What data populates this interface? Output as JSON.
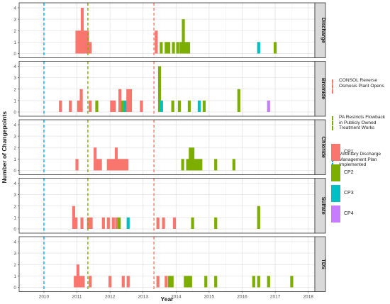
{
  "chart_data": {
    "type": "bar",
    "xlabel": "Year",
    "ylabel": "Number of Changepoints",
    "xlim": [
      2009.25,
      2018.2
    ],
    "ylim": [
      0,
      4
    ],
    "x_ticks": [
      2010,
      2011,
      2012,
      2013,
      2014,
      2015,
      2016,
      2017,
      2018
    ],
    "y_ticks": [
      0,
      1,
      2,
      3,
      4
    ],
    "grid": true,
    "legend_position": "right",
    "series_colors": {
      "CP1": "#F8766D",
      "CP2": "#7CAE00",
      "CP3": "#00BFC4",
      "CP4": "#C77CFF"
    },
    "fill_legend": [
      {
        "label": "CP1",
        "color": "#F8766D"
      },
      {
        "label": "CP2",
        "color": "#7CAE00"
      },
      {
        "label": "CP3",
        "color": "#00BFC4"
      },
      {
        "label": "CP4",
        "color": "#C77CFF"
      }
    ],
    "events": [
      {
        "label": "CONSOL Reverse Osmosis Plant Opens",
        "x": 2013.33,
        "color": "#F8766D",
        "lines": [
          "CONSOL Reverse",
          "Osmosis Plant Opens"
        ]
      },
      {
        "label": "PA Restricts Flowback in Publicly Owned Treatment Works",
        "x": 2011.33,
        "color": "#7CAE00",
        "lines": [
          "PA Restricts Flowback",
          "in Publicly Owned",
          "Treatment Works"
        ]
      },
      {
        "label": "Voluntary Discharge Management Plan Implemented",
        "x": 2010.0,
        "color": "#00A9FF",
        "lines": [
          "Voluntary Discharge",
          "Management Plan",
          "Implemented"
        ]
      }
    ],
    "panels": [
      {
        "name": "Discharge",
        "bars": [
          {
            "x": 2011.0,
            "y": 2,
            "s": "CP1"
          },
          {
            "x": 2011.08,
            "y": 2,
            "s": "CP1"
          },
          {
            "x": 2011.16,
            "y": 4,
            "s": "CP1"
          },
          {
            "x": 2011.24,
            "y": 2,
            "s": "CP1"
          },
          {
            "x": 2011.32,
            "y": 2,
            "s": "CP1"
          },
          {
            "x": 2011.4,
            "y": 1,
            "s": "CP1"
          },
          {
            "x": 2013.4,
            "y": 2,
            "s": "CP1"
          },
          {
            "x": 2013.55,
            "y": 1,
            "s": "CP2"
          },
          {
            "x": 2013.7,
            "y": 1,
            "s": "CP2"
          },
          {
            "x": 2013.78,
            "y": 1,
            "s": "CP2"
          },
          {
            "x": 2013.92,
            "y": 1,
            "s": "CP2"
          },
          {
            "x": 2014.05,
            "y": 1,
            "s": "CP2"
          },
          {
            "x": 2014.15,
            "y": 1,
            "s": "CP2"
          },
          {
            "x": 2014.22,
            "y": 3,
            "s": "CP2"
          },
          {
            "x": 2014.3,
            "y": 1,
            "s": "CP2"
          },
          {
            "x": 2014.38,
            "y": 1,
            "s": "CP2"
          },
          {
            "x": 2016.5,
            "y": 1,
            "s": "CP3"
          },
          {
            "x": 2017.0,
            "y": 1,
            "s": "CP2"
          }
        ]
      },
      {
        "name": "Bromide",
        "bars": [
          {
            "x": 2010.5,
            "y": 1,
            "s": "CP1"
          },
          {
            "x": 2010.8,
            "y": 1,
            "s": "CP1"
          },
          {
            "x": 2011.05,
            "y": 1,
            "s": "CP1"
          },
          {
            "x": 2011.13,
            "y": 2,
            "s": "CP1"
          },
          {
            "x": 2011.4,
            "y": 1,
            "s": "CP1"
          },
          {
            "x": 2011.6,
            "y": 1,
            "s": "CP2"
          },
          {
            "x": 2012.05,
            "y": 1,
            "s": "CP1"
          },
          {
            "x": 2012.13,
            "y": 1,
            "s": "CP1"
          },
          {
            "x": 2012.3,
            "y": 2,
            "s": "CP1"
          },
          {
            "x": 2012.38,
            "y": 1,
            "s": "CP2"
          },
          {
            "x": 2012.46,
            "y": 1,
            "s": "CP3"
          },
          {
            "x": 2012.54,
            "y": 2,
            "s": "CP1"
          },
          {
            "x": 2012.62,
            "y": 2,
            "s": "CP1"
          },
          {
            "x": 2012.95,
            "y": 1,
            "s": "CP1"
          },
          {
            "x": 2013.5,
            "y": 4,
            "s": "CP2"
          },
          {
            "x": 2013.56,
            "y": 1,
            "s": "CP3"
          },
          {
            "x": 2013.9,
            "y": 1,
            "s": "CP2"
          },
          {
            "x": 2014.1,
            "y": 1,
            "s": "CP2"
          },
          {
            "x": 2014.4,
            "y": 1,
            "s": "CP2"
          },
          {
            "x": 2014.7,
            "y": 1,
            "s": "CP3"
          },
          {
            "x": 2014.85,
            "y": 1,
            "s": "CP2"
          },
          {
            "x": 2015.9,
            "y": 2,
            "s": "CP2"
          },
          {
            "x": 2016.8,
            "y": 1,
            "s": "CP4"
          }
        ]
      },
      {
        "name": "Chloride",
        "bars": [
          {
            "x": 2011.0,
            "y": 1,
            "s": "CP1"
          },
          {
            "x": 2011.55,
            "y": 2,
            "s": "CP1"
          },
          {
            "x": 2011.63,
            "y": 1,
            "s": "CP1"
          },
          {
            "x": 2011.71,
            "y": 1,
            "s": "CP1"
          },
          {
            "x": 2011.95,
            "y": 1,
            "s": "CP1"
          },
          {
            "x": 2012.03,
            "y": 1,
            "s": "CP1"
          },
          {
            "x": 2012.11,
            "y": 1,
            "s": "CP1"
          },
          {
            "x": 2012.19,
            "y": 2,
            "s": "CP1"
          },
          {
            "x": 2012.27,
            "y": 1,
            "s": "CP1"
          },
          {
            "x": 2012.35,
            "y": 1,
            "s": "CP1"
          },
          {
            "x": 2012.43,
            "y": 1,
            "s": "CP1"
          },
          {
            "x": 2012.51,
            "y": 1,
            "s": "CP1"
          },
          {
            "x": 2014.2,
            "y": 1,
            "s": "CP2"
          },
          {
            "x": 2014.35,
            "y": 1,
            "s": "CP2"
          },
          {
            "x": 2014.43,
            "y": 2,
            "s": "CP2"
          },
          {
            "x": 2014.51,
            "y": 2,
            "s": "CP2"
          },
          {
            "x": 2014.59,
            "y": 1,
            "s": "CP2"
          },
          {
            "x": 2014.67,
            "y": 1,
            "s": "CP2"
          },
          {
            "x": 2014.75,
            "y": 1,
            "s": "CP2"
          },
          {
            "x": 2015.2,
            "y": 1,
            "s": "CP2"
          },
          {
            "x": 2015.75,
            "y": 1,
            "s": "CP2"
          }
        ]
      },
      {
        "name": "Sulfate",
        "bars": [
          {
            "x": 2010.9,
            "y": 2,
            "s": "CP1"
          },
          {
            "x": 2010.97,
            "y": 1,
            "s": "CP1"
          },
          {
            "x": 2011.15,
            "y": 1,
            "s": "CP1"
          },
          {
            "x": 2011.35,
            "y": 1,
            "s": "CP1"
          },
          {
            "x": 2011.43,
            "y": 1,
            "s": "CP1"
          },
          {
            "x": 2011.8,
            "y": 1,
            "s": "CP1"
          },
          {
            "x": 2011.95,
            "y": 1,
            "s": "CP1"
          },
          {
            "x": 2012.1,
            "y": 1,
            "s": "CP1"
          },
          {
            "x": 2012.2,
            "y": 1,
            "s": "CP1"
          },
          {
            "x": 2012.28,
            "y": 1,
            "s": "CP2"
          },
          {
            "x": 2012.55,
            "y": 1,
            "s": "CP3"
          },
          {
            "x": 2013.45,
            "y": 1,
            "s": "CP1"
          },
          {
            "x": 2013.62,
            "y": 1,
            "s": "CP1"
          },
          {
            "x": 2013.95,
            "y": 1,
            "s": "CP1"
          },
          {
            "x": 2014.5,
            "y": 1,
            "s": "CP2"
          },
          {
            "x": 2015.2,
            "y": 1,
            "s": "CP2"
          },
          {
            "x": 2016.5,
            "y": 2,
            "s": "CP2"
          }
        ]
      },
      {
        "name": "TDS",
        "bars": [
          {
            "x": 2010.95,
            "y": 1,
            "s": "CP1"
          },
          {
            "x": 2011.03,
            "y": 2,
            "s": "CP1"
          },
          {
            "x": 2011.11,
            "y": 1,
            "s": "CP1"
          },
          {
            "x": 2011.19,
            "y": 1,
            "s": "CP1"
          },
          {
            "x": 2011.4,
            "y": 1,
            "s": "CP1"
          },
          {
            "x": 2012.0,
            "y": 1,
            "s": "CP1"
          },
          {
            "x": 2012.4,
            "y": 1,
            "s": "CP1"
          },
          {
            "x": 2012.55,
            "y": 1,
            "s": "CP1"
          },
          {
            "x": 2013.45,
            "y": 1,
            "s": "CP1"
          },
          {
            "x": 2013.7,
            "y": 1,
            "s": "CP1"
          },
          {
            "x": 2013.8,
            "y": 1,
            "s": "CP2"
          },
          {
            "x": 2013.88,
            "y": 1,
            "s": "CP2"
          },
          {
            "x": 2014.28,
            "y": 1,
            "s": "CP2"
          },
          {
            "x": 2014.36,
            "y": 1,
            "s": "CP2"
          },
          {
            "x": 2014.44,
            "y": 1,
            "s": "CP2"
          },
          {
            "x": 2014.9,
            "y": 1,
            "s": "CP2"
          },
          {
            "x": 2015.2,
            "y": 1,
            "s": "CP2"
          },
          {
            "x": 2016.35,
            "y": 1,
            "s": "CP2"
          },
          {
            "x": 2016.5,
            "y": 1,
            "s": "CP2"
          },
          {
            "x": 2016.8,
            "y": 1,
            "s": "CP2"
          },
          {
            "x": 2017.5,
            "y": 1,
            "s": "CP2"
          }
        ]
      }
    ]
  }
}
